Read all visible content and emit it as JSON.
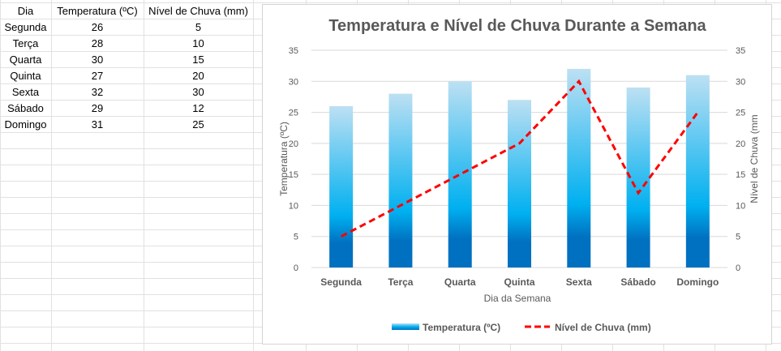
{
  "sheet": {
    "headers": [
      "Dia",
      "Temperatura (ºC)",
      "Nível de Chuva (mm)"
    ],
    "rows": [
      [
        "Segunda",
        "26",
        "5"
      ],
      [
        "Terça",
        "28",
        "10"
      ],
      [
        "Quarta",
        "30",
        "15"
      ],
      [
        "Quinta",
        "27",
        "20"
      ],
      [
        "Sexta",
        "32",
        "30"
      ],
      [
        "Sábado",
        "29",
        "12"
      ],
      [
        "Domingo",
        "31",
        "25"
      ]
    ]
  },
  "chart_data": {
    "type": "bar+line",
    "title": "Temperatura e Nível de Chuva Durante a Semana",
    "xlabel": "Dia da Semana",
    "ylabel": "Temperatura (ºC)",
    "y2label": "Nível de Chuva (mm",
    "categories": [
      "Segunda",
      "Terça",
      "Quarta",
      "Quinta",
      "Sexta",
      "Sábado",
      "Domingo"
    ],
    "ylim": [
      0,
      35
    ],
    "y2lim": [
      0,
      35
    ],
    "yticks": [
      0,
      5,
      10,
      15,
      20,
      25,
      30,
      35
    ],
    "grid": true,
    "legend": "bottom",
    "series": [
      {
        "name": "Temperatura (ºC)",
        "type": "bar",
        "axis": "left",
        "values": [
          26,
          28,
          30,
          27,
          32,
          29,
          31
        ],
        "colors": [
          "#BDE0F3",
          "#00B0F0",
          "#0070C0"
        ]
      },
      {
        "name": "Nível de Chuva (mm)",
        "type": "line",
        "style": "dashed",
        "axis": "right",
        "values": [
          5,
          10,
          15,
          20,
          30,
          12,
          25
        ],
        "color": "#FF0000"
      }
    ]
  }
}
